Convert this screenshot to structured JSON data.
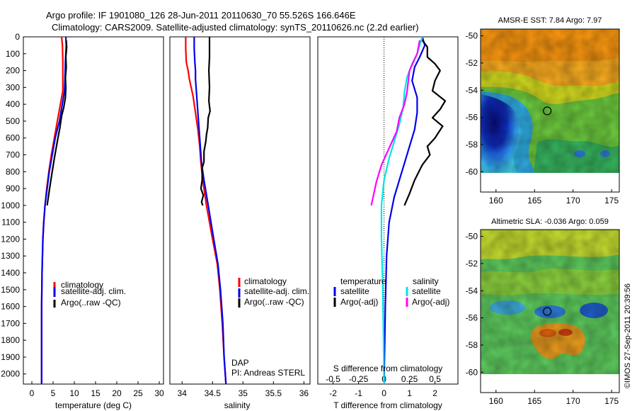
{
  "header": {
    "line1": "Argo profile: IF 1901080_126 28-Jun-2011 20110630_70 55.526S 166.646E",
    "line2": "Climatology: CARS2009. Satellite-adjusted climatology: synTS_20110626.nc (2.2d earlier)"
  },
  "footer": {
    "dap": "DAP",
    "pi": "PI: Andreas STERL",
    "imos": "©IMOS 27-Sep-2011 20:39:56"
  },
  "colors": {
    "climatology": "#ff0000",
    "satellite": "#0000ee",
    "argo": "#000000",
    "sal_satellite": "#00e5e5",
    "sal_argo": "#ff00ff"
  },
  "chart_data": [
    {
      "type": "line",
      "xlabel": "temperature (deg C)",
      "ylabel": "",
      "xlim": [
        -2,
        31
      ],
      "ylim": [
        2060,
        0
      ],
      "xticks": [
        "0",
        "5",
        "10",
        "15",
        "20",
        "25",
        "30"
      ],
      "yticks": [
        "0",
        "100",
        "200",
        "300",
        "400",
        "500",
        "600",
        "700",
        "800",
        "900",
        "1000",
        "1100",
        "1200",
        "1300",
        "1400",
        "1500",
        "1600",
        "1700",
        "1800",
        "1900",
        "2000"
      ],
      "legend": [
        "climatology",
        "satellite-adj. clim.",
        "Argo(..raw -QC)"
      ],
      "legend_position": "center-right",
      "series": [
        {
          "name": "climatology",
          "color": "#ff0000",
          "x": [
            7.0,
            7.2,
            7.3,
            7.3,
            7.3,
            6.0,
            5.3,
            4.6,
            4.0,
            3.5,
            3.1,
            2.8,
            2.6,
            2.5,
            2.4,
            2.3,
            2.3,
            2.3
          ],
          "y": [
            0,
            50,
            150,
            250,
            320,
            500,
            600,
            700,
            800,
            900,
            1000,
            1100,
            1200,
            1300,
            1400,
            1600,
            1800,
            2060
          ]
        },
        {
          "name": "satellite-adj. clim.",
          "color": "#0000ee",
          "x": [
            8.0,
            8.1,
            7.9,
            7.8,
            7.7,
            6.5,
            5.5,
            4.8,
            4.1,
            3.6,
            3.1,
            2.8,
            2.6,
            2.5,
            2.4,
            2.3,
            2.3,
            2.3
          ],
          "y": [
            0,
            50,
            150,
            250,
            320,
            500,
            600,
            700,
            800,
            900,
            1000,
            1100,
            1200,
            1300,
            1400,
            1600,
            1800,
            2060
          ]
        },
        {
          "name": "Argo(..raw -QC)",
          "color": "#000000",
          "x": [
            8.1,
            8.2,
            8.0,
            8.1,
            7.9,
            8.0,
            7.9,
            7.5,
            7.0,
            6.6,
            6.0,
            5.3,
            4.6,
            4.0,
            3.6
          ],
          "y": [
            20,
            60,
            120,
            180,
            240,
            300,
            360,
            420,
            470,
            540,
            620,
            720,
            830,
            930,
            1000
          ]
        }
      ]
    },
    {
      "type": "line",
      "xlabel": "salinity",
      "ylabel": "",
      "xlim": [
        33.8,
        36.1
      ],
      "ylim": [
        2060,
        0
      ],
      "xticks": [
        "34",
        "34.5",
        "35",
        "35.5",
        "36"
      ],
      "legend": [
        "climatology",
        "satellite-adj. clim.",
        "Argo(..raw -QC)"
      ],
      "legend_position": "center-right",
      "series": [
        {
          "name": "climatology",
          "color": "#ff0000",
          "x": [
            34.06,
            34.06,
            34.07,
            34.1,
            34.12,
            34.18,
            34.22,
            34.26,
            34.29,
            34.31,
            34.34,
            34.4,
            34.5,
            34.58,
            34.62,
            34.66,
            34.69,
            34.71,
            34.72
          ],
          "y": [
            0,
            70,
            150,
            200,
            250,
            350,
            450,
            550,
            650,
            750,
            850,
            1000,
            1200,
            1350,
            1500,
            1700,
            1900,
            2000,
            2060
          ]
        },
        {
          "name": "satellite-adj. clim.",
          "color": "#0000ee",
          "x": [
            34.2,
            34.2,
            34.21,
            34.22,
            34.22,
            34.24,
            34.26,
            34.28,
            34.3,
            34.32,
            34.36,
            34.43,
            34.52,
            34.59,
            34.63,
            34.67,
            34.69,
            34.71,
            34.72
          ],
          "y": [
            0,
            70,
            150,
            200,
            250,
            350,
            450,
            550,
            650,
            750,
            850,
            1000,
            1200,
            1350,
            1500,
            1700,
            1900,
            2000,
            2060
          ]
        },
        {
          "name": "Argo(..raw -QC)",
          "color": "#000000",
          "x": [
            34.45,
            34.45,
            34.45,
            34.44,
            34.45,
            34.44,
            34.46,
            34.43,
            34.42,
            34.4,
            34.39,
            34.36,
            34.36,
            34.33,
            34.33,
            34.31,
            34.35,
            34.32,
            34.34
          ],
          "y": [
            0,
            60,
            120,
            200,
            300,
            380,
            440,
            480,
            540,
            580,
            620,
            680,
            740,
            780,
            850,
            900,
            940,
            980,
            1000
          ]
        }
      ]
    },
    {
      "type": "line",
      "xlabel": "T difference from climatology",
      "secondary_xlabel": "S difference from climatology",
      "xlim": [
        -2.6,
        2.9
      ],
      "ylim": [
        2060,
        0
      ],
      "xticks": [
        "-2",
        "-1",
        "0",
        "1",
        "2"
      ],
      "secondary_xticks": [
        "-0.5",
        "-0.25",
        "0",
        "0.25",
        "0.5"
      ],
      "legend_headers": [
        "temperature",
        "salinity"
      ],
      "legend": [
        "satellite",
        "Argo(-adj)",
        "satellite",
        "Argo(-adj)"
      ],
      "legend_position": "center",
      "series": [
        {
          "name": "satellite",
          "group": "temperature",
          "color": "#0000ee",
          "x": [
            1.5,
            1.6,
            1.4,
            1.2,
            1.1,
            1.3,
            1.3,
            1.2,
            1.0,
            0.8,
            0.6,
            0.4,
            0.2,
            0.1,
            0.05,
            0.0
          ],
          "y": [
            0,
            50,
            120,
            180,
            260,
            360,
            450,
            550,
            650,
            750,
            850,
            950,
            1100,
            1300,
            1600,
            2060
          ]
        },
        {
          "name": "Argo(-adj)",
          "group": "temperature",
          "color": "#000000",
          "x": [
            1.5,
            1.7,
            1.7,
            2.0,
            2.2,
            2.0,
            1.9,
            2.4,
            2.2,
            1.9,
            2.3,
            2.0,
            1.7,
            1.8,
            1.5,
            1.2,
            1.0,
            0.8
          ],
          "y": [
            20,
            60,
            120,
            160,
            200,
            260,
            320,
            380,
            430,
            480,
            530,
            600,
            650,
            700,
            760,
            850,
            930,
            1000
          ]
        },
        {
          "name": "satellite",
          "group": "salinity",
          "color": "#00e5e5",
          "x": [
            1.5,
            1.4,
            1.3,
            1.1,
            0.9,
            0.8,
            0.75,
            0.6,
            0.4,
            0.2,
            0.0,
            -0.1,
            -0.1,
            -0.05,
            -0.02,
            0.0
          ],
          "y": [
            0,
            50,
            100,
            160,
            240,
            330,
            420,
            520,
            620,
            720,
            850,
            1000,
            1200,
            1500,
            1800,
            2060
          ]
        },
        {
          "name": "Argo(-adj)",
          "group": "salinity",
          "color": "#ff00ff",
          "x": [
            1.4,
            1.3,
            1.0,
            0.9,
            0.8,
            0.6,
            0.5,
            0.2,
            -0.1,
            -0.3,
            -0.4,
            -0.5
          ],
          "y": [
            20,
            100,
            200,
            330,
            400,
            480,
            560,
            660,
            760,
            860,
            930,
            1000
          ]
        }
      ]
    },
    {
      "type": "heatmap",
      "title": "AMSR-E SST: 7.84 Argo: 7.97",
      "xlim": [
        158,
        176
      ],
      "ylim": [
        -61.5,
        -49.5
      ],
      "xticks": [
        "160",
        "165",
        "170",
        "175"
      ],
      "yticks": [
        "-50",
        "-52",
        "-54",
        "-56",
        "-58",
        "-60"
      ],
      "marker": {
        "lon": 166.646,
        "lat": -55.526
      }
    },
    {
      "type": "heatmap",
      "title": "Altimetric SLA: -0.036 Argo: 0.059",
      "xlim": [
        158,
        176
      ],
      "ylim": [
        -61.5,
        -49.5
      ],
      "xticks": [
        "160",
        "165",
        "170",
        "175"
      ],
      "yticks": [
        "-50",
        "-52",
        "-54",
        "-56",
        "-58",
        "-60"
      ],
      "marker": {
        "lon": 166.646,
        "lat": -55.526
      }
    }
  ]
}
